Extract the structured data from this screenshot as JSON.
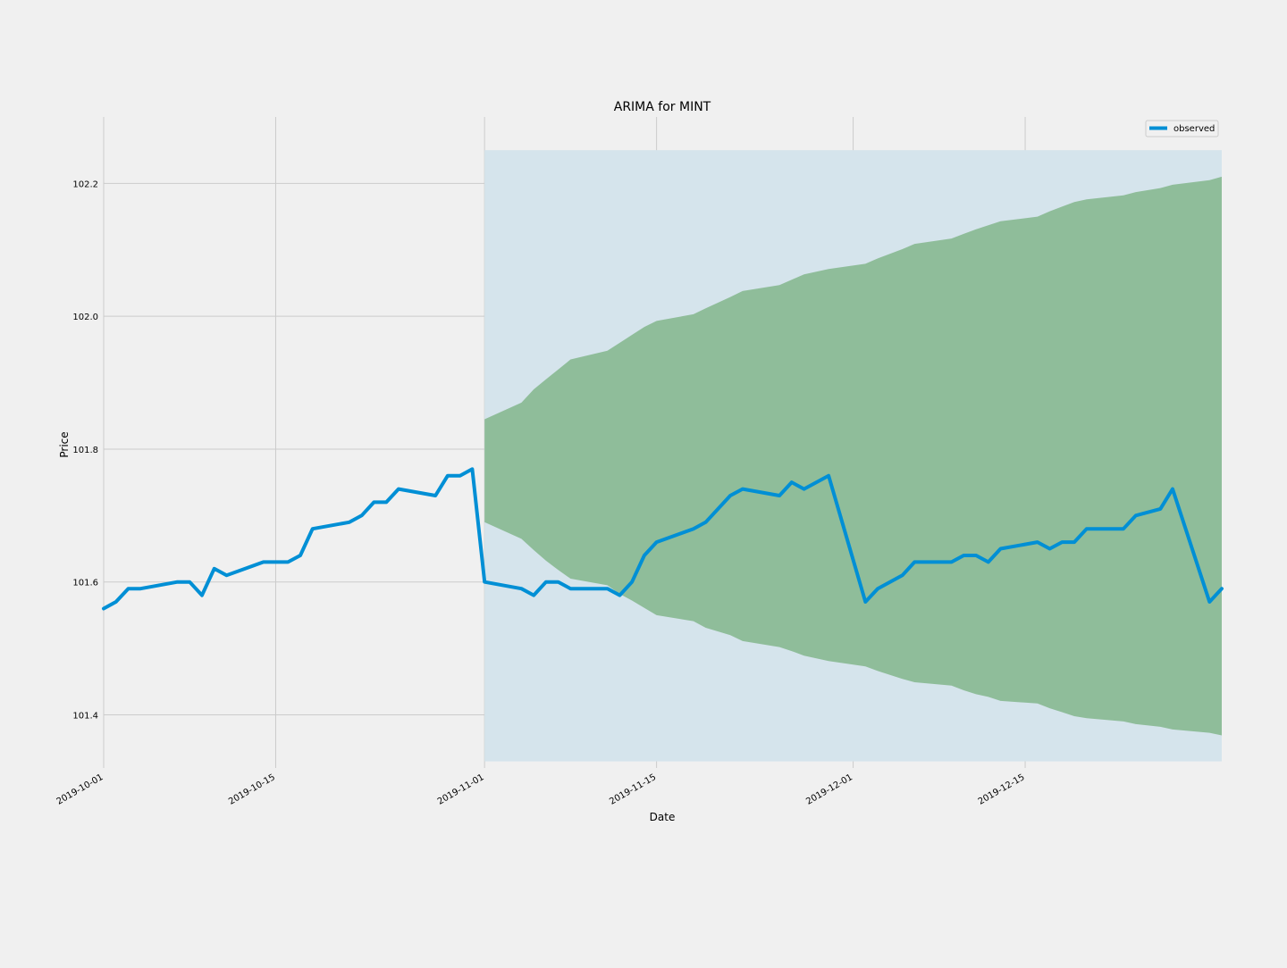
{
  "chart_data": {
    "type": "line",
    "title": "ARIMA for MINT",
    "xlabel": "Date",
    "ylabel": "Price",
    "grid": true,
    "legend_placement": "top-right",
    "xlim": [
      "2019-10-01",
      "2019-12-31"
    ],
    "ylim": [
      101.32,
      102.3
    ],
    "x_ticks": [
      "2019-10-01",
      "2019-10-15",
      "2019-11-01",
      "2019-11-15",
      "2019-12-01",
      "2019-12-15"
    ],
    "y_ticks": [
      101.4,
      101.6,
      101.8,
      102.0,
      102.2
    ],
    "colors": {
      "observed": "#008fd5",
      "band": "#6aa86f",
      "shade": "#d5e4ec",
      "grid": "#cbcbcb"
    },
    "shaded_region": {
      "x": [
        "2019-11-01",
        "2019-12-31"
      ],
      "y": [
        101.33,
        102.25
      ]
    },
    "series": [
      {
        "name": "observed",
        "points": [
          [
            "2019-10-01",
            101.56
          ],
          [
            "2019-10-02",
            101.57
          ],
          [
            "2019-10-03",
            101.59
          ],
          [
            "2019-10-04",
            101.59
          ],
          [
            "2019-10-07",
            101.6
          ],
          [
            "2019-10-08",
            101.6
          ],
          [
            "2019-10-09",
            101.58
          ],
          [
            "2019-10-10",
            101.62
          ],
          [
            "2019-10-11",
            101.61
          ],
          [
            "2019-10-14",
            101.63
          ],
          [
            "2019-10-15",
            101.63
          ],
          [
            "2019-10-16",
            101.63
          ],
          [
            "2019-10-17",
            101.64
          ],
          [
            "2019-10-18",
            101.68
          ],
          [
            "2019-10-21",
            101.69
          ],
          [
            "2019-10-22",
            101.7
          ],
          [
            "2019-10-23",
            101.72
          ],
          [
            "2019-10-24",
            101.72
          ],
          [
            "2019-10-25",
            101.74
          ],
          [
            "2019-10-28",
            101.73
          ],
          [
            "2019-10-29",
            101.76
          ],
          [
            "2019-10-30",
            101.76
          ],
          [
            "2019-10-31",
            101.77
          ],
          [
            "2019-11-01",
            101.6
          ],
          [
            "2019-11-04",
            101.59
          ],
          [
            "2019-11-05",
            101.58
          ],
          [
            "2019-11-06",
            101.6
          ],
          [
            "2019-11-07",
            101.6
          ],
          [
            "2019-11-08",
            101.59
          ],
          [
            "2019-11-11",
            101.59
          ],
          [
            "2019-11-12",
            101.58
          ],
          [
            "2019-11-13",
            101.6
          ],
          [
            "2019-11-14",
            101.64
          ],
          [
            "2019-11-15",
            101.66
          ],
          [
            "2019-11-18",
            101.68
          ],
          [
            "2019-11-19",
            101.69
          ],
          [
            "2019-11-21",
            101.73
          ],
          [
            "2019-11-22",
            101.74
          ],
          [
            "2019-11-25",
            101.73
          ],
          [
            "2019-11-26",
            101.75
          ],
          [
            "2019-11-27",
            101.74
          ],
          [
            "2019-11-29",
            101.76
          ],
          [
            "2019-12-02",
            101.57
          ],
          [
            "2019-12-03",
            101.59
          ],
          [
            "2019-12-05",
            101.61
          ],
          [
            "2019-12-06",
            101.63
          ],
          [
            "2019-12-09",
            101.63
          ],
          [
            "2019-12-10",
            101.64
          ],
          [
            "2019-12-11",
            101.64
          ],
          [
            "2019-12-12",
            101.63
          ],
          [
            "2019-12-13",
            101.65
          ],
          [
            "2019-12-16",
            101.66
          ],
          [
            "2019-12-17",
            101.65
          ],
          [
            "2019-12-18",
            101.66
          ],
          [
            "2019-12-19",
            101.66
          ],
          [
            "2019-12-20",
            101.68
          ],
          [
            "2019-12-23",
            101.68
          ],
          [
            "2019-12-24",
            101.7
          ],
          [
            "2019-12-26",
            101.71
          ],
          [
            "2019-12-27",
            101.74
          ],
          [
            "2019-12-30",
            101.57
          ],
          [
            "2019-12-31",
            101.59
          ]
        ]
      }
    ],
    "band": {
      "x": [
        "2019-11-01",
        "2019-11-04",
        "2019-11-05",
        "2019-11-06",
        "2019-11-07",
        "2019-11-08",
        "2019-11-11",
        "2019-11-12",
        "2019-11-13",
        "2019-11-14",
        "2019-11-15",
        "2019-11-18",
        "2019-11-19",
        "2019-11-21",
        "2019-11-22",
        "2019-11-25",
        "2019-11-26",
        "2019-11-27",
        "2019-11-29",
        "2019-12-02",
        "2019-12-03",
        "2019-12-05",
        "2019-12-06",
        "2019-12-09",
        "2019-12-10",
        "2019-12-11",
        "2019-12-12",
        "2019-12-13",
        "2019-12-16",
        "2019-12-17",
        "2019-12-18",
        "2019-12-19",
        "2019-12-20",
        "2019-12-23",
        "2019-12-24",
        "2019-12-26",
        "2019-12-27",
        "2019-12-30",
        "2019-12-31"
      ],
      "upper": [
        101.845,
        101.87,
        101.89,
        101.905,
        101.92,
        101.935,
        101.948,
        101.96,
        101.972,
        101.984,
        101.993,
        102.003,
        102.012,
        102.029,
        102.038,
        102.047,
        102.055,
        102.063,
        102.071,
        102.079,
        102.087,
        102.101,
        102.109,
        102.117,
        102.124,
        102.131,
        102.137,
        102.143,
        102.15,
        102.158,
        102.165,
        102.172,
        102.176,
        102.182,
        102.187,
        102.193,
        102.198,
        102.205,
        102.21
      ],
      "lower": [
        101.69,
        101.665,
        101.648,
        101.632,
        101.618,
        101.605,
        101.595,
        101.582,
        101.572,
        101.561,
        101.55,
        101.541,
        101.531,
        101.52,
        101.511,
        101.502,
        101.496,
        101.489,
        101.481,
        101.473,
        101.466,
        101.454,
        101.449,
        101.444,
        101.437,
        101.431,
        101.427,
        101.421,
        101.417,
        101.41,
        101.404,
        101.398,
        101.395,
        101.39,
        101.386,
        101.382,
        101.378,
        101.373,
        101.369
      ]
    }
  }
}
